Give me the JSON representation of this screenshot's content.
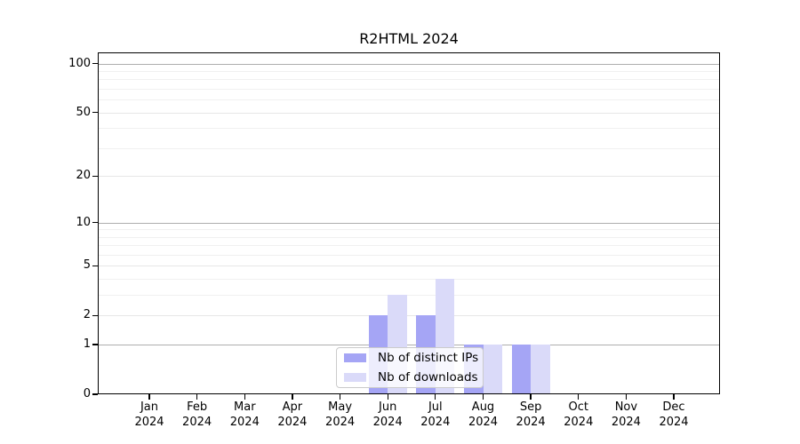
{
  "chart_data": {
    "type": "bar",
    "title": "R2HTML 2024",
    "xlabel": "",
    "ylabel": "",
    "x": {
      "categories": [
        "Jan",
        "Feb",
        "Mar",
        "Apr",
        "May",
        "Jun",
        "Jul",
        "Aug",
        "Sep",
        "Oct",
        "Nov",
        "Dec"
      ],
      "year_label": "2024"
    },
    "series": [
      {
        "name": "Nb of distinct IPs",
        "color": "#a5a5f5",
        "values": [
          0,
          0,
          0,
          0,
          0,
          2,
          2,
          1,
          1,
          0,
          0,
          0
        ]
      },
      {
        "name": "Nb of downloads",
        "color": "#dadaf9",
        "values": [
          0,
          0,
          0,
          0,
          0,
          3,
          4,
          1,
          1,
          0,
          0,
          0
        ]
      }
    ],
    "y_axis": {
      "scale": "log1p",
      "tick_values": [
        0,
        1,
        2,
        5,
        10,
        20,
        50,
        100
      ],
      "tick_labels": [
        "0",
        "1",
        "2",
        "5",
        "10",
        "20",
        "50",
        "100"
      ],
      "axis_max": 117,
      "grid": true,
      "gridlines": {
        "major": [
          1,
          10,
          100
        ],
        "mid": [
          2,
          5,
          20,
          50
        ],
        "minor": [
          3,
          4,
          6,
          7,
          8,
          9,
          30,
          40,
          60,
          70,
          80,
          90
        ]
      }
    },
    "ylim": [
      0,
      117
    ],
    "legend_position": "inside-bottom-center"
  },
  "colors": {
    "background": "#ffffff",
    "axis": "#000000",
    "gridline_major": "#aeaeae",
    "gridline_mid": "#e7e7e7",
    "gridline_minor": "#f0f0f0",
    "legend_border": "#cbcbcb",
    "text": "#000000"
  }
}
